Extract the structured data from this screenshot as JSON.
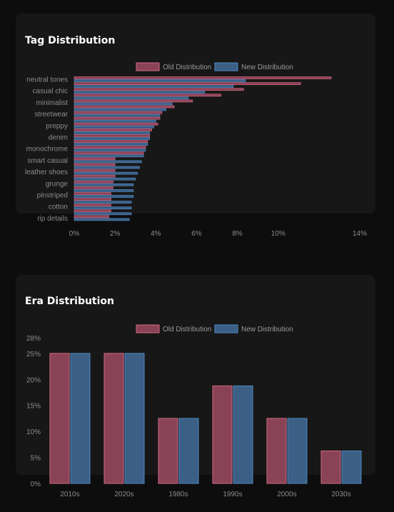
{
  "colors": {
    "old_fill": "#8a4256",
    "old_stroke": "#d36985",
    "new_fill": "#3b5f85",
    "new_stroke": "#4f88c2",
    "tick_text": "#8c8c8c",
    "legend_text": "#9a9a9a"
  },
  "tag_card": {
    "title": "Tag Distribution"
  },
  "era_card": {
    "title": "Era Distribution"
  },
  "chart_data": [
    {
      "type": "bar",
      "orientation": "horizontal",
      "title": "Tag Distribution",
      "legend_position": "top-center",
      "legend": [
        "Old Distribution",
        "New Distribution"
      ],
      "categories": [
        "neutral tones",
        "",
        "casual chic",
        "",
        "minimalist",
        "",
        "streetwear",
        "",
        "preppy",
        "",
        "denim",
        "",
        "monochrome",
        "",
        "smart casual",
        "",
        "leather shoes",
        "",
        "grunge",
        "",
        "pinstriped",
        "",
        "cotton",
        "",
        "rip details"
      ],
      "series": [
        {
          "name": "Old Distribution",
          "values": [
            12.6,
            11.1,
            8.3,
            7.2,
            5.8,
            4.9,
            4.3,
            4.2,
            4.1,
            3.8,
            3.7,
            3.6,
            3.5,
            3.4,
            2.0,
            2.0,
            2.0,
            2.0,
            1.9,
            1.9,
            1.8,
            1.8,
            1.8,
            1.8,
            1.7
          ]
        },
        {
          "name": "New Distribution",
          "values": [
            8.4,
            7.8,
            6.4,
            5.6,
            4.8,
            4.5,
            4.2,
            4.0,
            3.9,
            3.7,
            3.7,
            3.6,
            3.5,
            3.4,
            3.3,
            3.2,
            3.1,
            3.0,
            2.9,
            2.9,
            2.9,
            2.8,
            2.8,
            2.8,
            2.7
          ]
        }
      ],
      "x_ticks": [
        "0%",
        "2%",
        "4%",
        "6%",
        "8%",
        "10%",
        "14%"
      ],
      "xlim": [
        0,
        14
      ]
    },
    {
      "type": "bar",
      "title": "Era Distribution",
      "legend_position": "top-center",
      "legend": [
        "Old Distribution",
        "New Distribution"
      ],
      "categories": [
        "2010s",
        "2020s",
        "1980s",
        "1990s",
        "2000s",
        "2030s"
      ],
      "series": [
        {
          "name": "Old Distribution",
          "values": [
            25,
            25,
            12.5,
            18.75,
            12.5,
            6.25
          ]
        },
        {
          "name": "New Distribution",
          "values": [
            25,
            25,
            12.5,
            18.75,
            12.5,
            6.25
          ]
        }
      ],
      "y_ticks": [
        "0%",
        "5%",
        "10%",
        "15%",
        "20%",
        "25%",
        "28%"
      ],
      "ylim": [
        0,
        28
      ]
    }
  ]
}
